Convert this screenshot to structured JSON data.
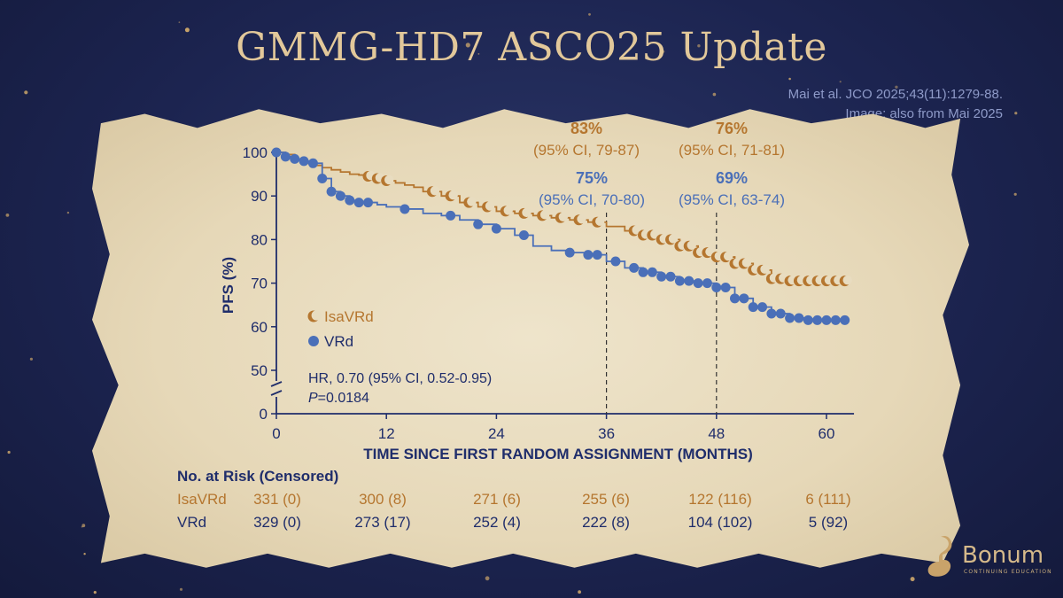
{
  "slide": {
    "title": "GMMG-HD7 ASCO25 Update",
    "citation_line1": "Mai et al. JCO 2025;43(11):1279-88.",
    "citation_line2": "Image: also from Mai 2025",
    "logo_text": "Bonum",
    "logo_subtext": "CONTINUING EDUCATION"
  },
  "colors": {
    "isavrd": "#b5762f",
    "vrd": "#4a6fb8",
    "navy": "#1f2d6b",
    "title_gold": "#e2c89a"
  },
  "chart_data": {
    "type": "line",
    "xlabel": "TIME SINCE FIRST RANDOM ASSIGNMENT (MONTHS)",
    "ylabel": "PFS (%)",
    "x_ticks": [
      0,
      12,
      24,
      36,
      48,
      60
    ],
    "y_ticks": [
      100,
      90,
      80,
      70,
      60,
      50,
      0
    ],
    "xlim": [
      0,
      63
    ],
    "ylim": [
      0,
      100
    ],
    "y_axis_break": "0-45",
    "grid": false,
    "legend_position": "left-middle",
    "hr_text": "HR, 0.70 (95% CI, 0.52-0.95)",
    "p_prefix": "P",
    "p_value": "=0.0184",
    "series": [
      {
        "name": "IsaVRd",
        "marker": "crescent",
        "x": [
          0,
          1,
          2,
          3,
          4,
          5,
          6,
          7,
          8,
          9,
          10,
          11,
          12,
          13,
          14,
          15,
          16,
          18,
          20,
          22,
          24,
          26,
          28,
          30,
          32,
          34,
          36,
          38,
          40,
          42,
          44,
          46,
          48,
          50,
          52,
          54,
          56,
          58,
          60,
          62
        ],
        "y": [
          100,
          99.5,
          98.5,
          97.5,
          97,
          96.5,
          96,
          95.5,
          95,
          94.8,
          94.5,
          94,
          93.5,
          93,
          92.5,
          92,
          91,
          90,
          88.5,
          87.5,
          86.5,
          86,
          85.5,
          85,
          84.5,
          84,
          83,
          82,
          81,
          80,
          78.5,
          77,
          76,
          74.5,
          73,
          71,
          70.5,
          70.5,
          70.5,
          70.5
        ],
        "censor_x": [
          10,
          11,
          12,
          17,
          19,
          21,
          23,
          25,
          27,
          29,
          31,
          33,
          35,
          39,
          40,
          41,
          42,
          43,
          44,
          45,
          46,
          47,
          48,
          49,
          50,
          51,
          52,
          53,
          54,
          55,
          56,
          57,
          58,
          59,
          60,
          61,
          62
        ]
      },
      {
        "name": "VRd",
        "marker": "dot",
        "x": [
          0,
          1,
          2,
          3,
          4,
          5,
          6,
          7,
          8,
          9,
          10,
          11,
          12,
          14,
          16,
          18,
          20,
          22,
          24,
          26,
          28,
          30,
          32,
          34,
          36,
          38,
          40,
          42,
          44,
          46,
          48,
          50,
          52,
          54,
          56,
          58,
          60,
          62
        ],
        "y": [
          100,
          99,
          98.5,
          98,
          97.5,
          94,
          91,
          90,
          89,
          88.5,
          88.5,
          88,
          87.5,
          87,
          86,
          85.5,
          84.5,
          83.5,
          82.5,
          81,
          78.5,
          77.5,
          77,
          76.5,
          75,
          73.5,
          72.5,
          71.5,
          70.5,
          70,
          69,
          66.5,
          64.5,
          63,
          62,
          61.5,
          61.5,
          61.5
        ],
        "censor_x": [
          0,
          1,
          2,
          3,
          4,
          5,
          6,
          7,
          8,
          9,
          10,
          14,
          19,
          22,
          24,
          27,
          32,
          34,
          35,
          37,
          39,
          40,
          41,
          42,
          43,
          44,
          45,
          46,
          47,
          48,
          49,
          50,
          51,
          52,
          53,
          54,
          55,
          56,
          57,
          58,
          59,
          60,
          61,
          62
        ]
      }
    ],
    "reference_lines": [
      {
        "x": 36,
        "isavrd_pct": "83%",
        "isavrd_ci": "(95% CI, 79-87)",
        "vrd_pct": "75%",
        "vrd_ci": "(95% CI, 70-80)"
      },
      {
        "x": 48,
        "isavrd_pct": "76%",
        "isavrd_ci": "(95% CI, 71-81)",
        "vrd_pct": "69%",
        "vrd_ci": "(95% CI, 63-74)"
      }
    ]
  },
  "risk_table": {
    "header": "No. at Risk (Censored)",
    "rows": [
      {
        "label": "IsaVRd",
        "values": [
          "331 (0)",
          "300 (8)",
          "271 (6)",
          "255 (6)",
          "122 (116)",
          "6 (111)"
        ]
      },
      {
        "label": "VRd",
        "values": [
          "329 (0)",
          "273 (17)",
          "252 (4)",
          "222 (8)",
          "104 (102)",
          "5 (92)"
        ]
      }
    ]
  }
}
